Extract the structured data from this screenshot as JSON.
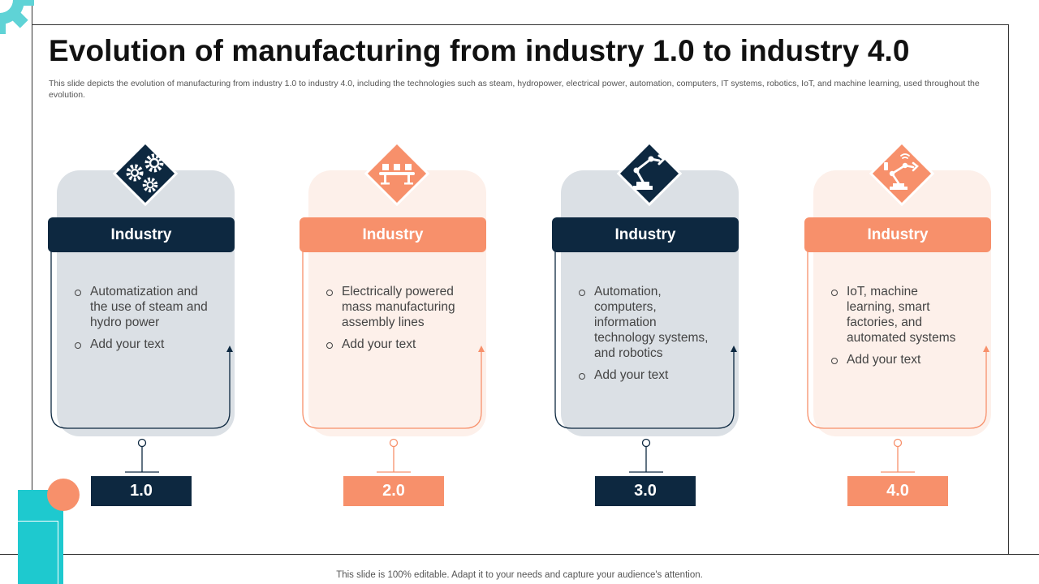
{
  "slide": {
    "title": "Evolution of manufacturing from industry 1.0 to industry 4.0",
    "subtitle": "This slide depicts the evolution of manufacturing from industry 1.0 to industry 4.0, including the technologies such as steam, hydropower, electrical power, automation, computers, IT systems, robotics, IoT, and machine learning, used throughout the evolution.",
    "footer": "This slide is 100% editable. Adapt it to your needs and capture your audience's attention."
  },
  "colors": {
    "navy": "#0d2840",
    "orange": "#f7906b",
    "teal": "#1ec9cf",
    "card_gray": "#dbe0e5",
    "card_peach": "#fdf0ea"
  },
  "stages": [
    {
      "header": "Industry",
      "number": "1.0",
      "icon": "gears-icon",
      "theme": "dark",
      "bullets": [
        "Automatization and the use of steam and hydro power",
        "Add your text"
      ]
    },
    {
      "header": "Industry",
      "number": "2.0",
      "icon": "conveyor-belt-icon",
      "theme": "orange",
      "bullets": [
        "Electrically powered mass manufacturing assembly lines",
        "Add your text"
      ]
    },
    {
      "header": "Industry",
      "number": "3.0",
      "icon": "robotic-arm-icon",
      "theme": "dark",
      "bullets": [
        "Automation, computers, information technology systems, and robotics",
        "Add your text"
      ]
    },
    {
      "header": "Industry",
      "number": "4.0",
      "icon": "smart-robotic-arm-icon",
      "theme": "orange",
      "bullets": [
        "IoT, machine learning, smart factories, and automated systems",
        "Add your text"
      ]
    }
  ]
}
